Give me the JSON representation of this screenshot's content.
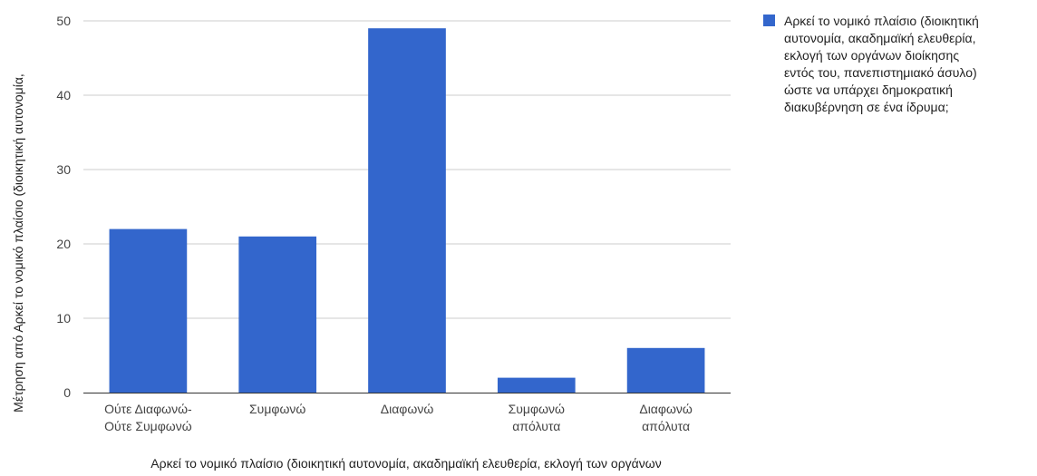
{
  "chart_data": {
    "type": "bar",
    "categories": [
      [
        "Ούτε Διαφωνώ-",
        "Ούτε Συμφωνώ"
      ],
      [
        "Συμφωνώ"
      ],
      [
        "Διαφωνώ"
      ],
      [
        "Συμφωνώ",
        "απόλυτα"
      ],
      [
        "Διαφωνώ",
        "απόλυτα"
      ]
    ],
    "series": [
      {
        "name": "Αρκεί το νομικό πλαίσιο (διοικητική αυτονομία, ακαδημαϊκή ελευθερία, εκλογή των οργάνων διοίκησης εντός του, πανεπιστημιακό άσυλο) ώστε να υπάρχει δημοκρατική διακυβέρνηση σε ένα ίδρυμα;",
        "values": [
          22,
          21,
          49,
          2,
          6
        ]
      }
    ],
    "xlabel": "Αρκεί το νομικό πλαίσιο (διοικητική αυτονομία, ακαδημαϊκή ελευθερία, εκλογή των οργάνων",
    "ylabel": "Μέτρηση από Αρκεί το νομικό πλαίσιο (διοικητική αυτονομία,",
    "ylim": [
      0,
      50
    ],
    "yticks": [
      0,
      10,
      20,
      30,
      40,
      50
    ],
    "grid": true,
    "legend_position": "right",
    "legend_lines": [
      "Αρκεί το νομικό πλαίσιο (διοικητική",
      "αυτονομία, ακαδημαϊκή ελευθερία,",
      "εκλογή των οργάνων διοίκησης",
      "εντός του, πανεπιστημιακό άσυλο)",
      "ώστε να υπάρχει δημοκρατική",
      "διακυβέρνηση σε ένα ίδρυμα;"
    ],
    "colors": {
      "bar": "#3366cc",
      "grid": "#cccccc",
      "axis": "#333333"
    }
  }
}
